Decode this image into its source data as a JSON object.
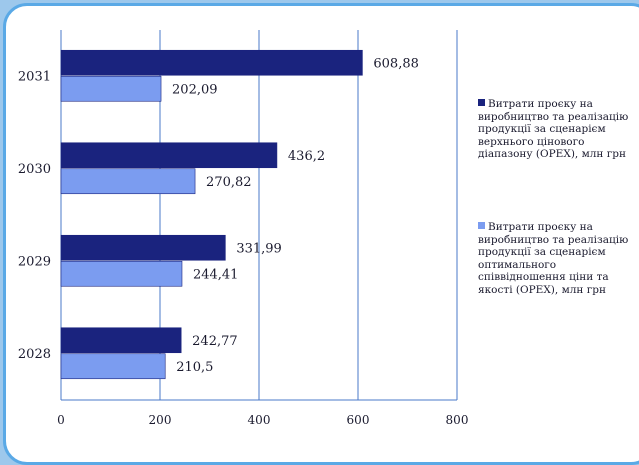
{
  "chart_data": {
    "type": "bar",
    "orientation": "horizontal",
    "categories": [
      "2028",
      "2029",
      "2030",
      "2031"
    ],
    "series": [
      {
        "name": "Витрати проєку на виробництво та реалізацію продукції за сценарієм верхнього цінового діапазону (OPEX), млн грн",
        "values": [
          242.77,
          331.99,
          436.2,
          608.88
        ],
        "labels": [
          "242,77",
          "331,99",
          "436,2",
          "608,88"
        ],
        "color": "#1a237e"
      },
      {
        "name": "Витрати проєку на виробництво та реалізацію продукції за сценарієм оптимального співвідношення ціни та якості (OPEX), млн грн",
        "values": [
          210.5,
          244.41,
          270.82,
          202.09
        ],
        "labels": [
          "210,5",
          "244,41",
          "270,82",
          "202,09"
        ],
        "color": "#7b9cf0"
      }
    ],
    "xlim": [
      0,
      800
    ],
    "xticks": [
      "0",
      "200",
      "400",
      "600",
      "800"
    ],
    "grid": true,
    "legend_position": "right"
  }
}
